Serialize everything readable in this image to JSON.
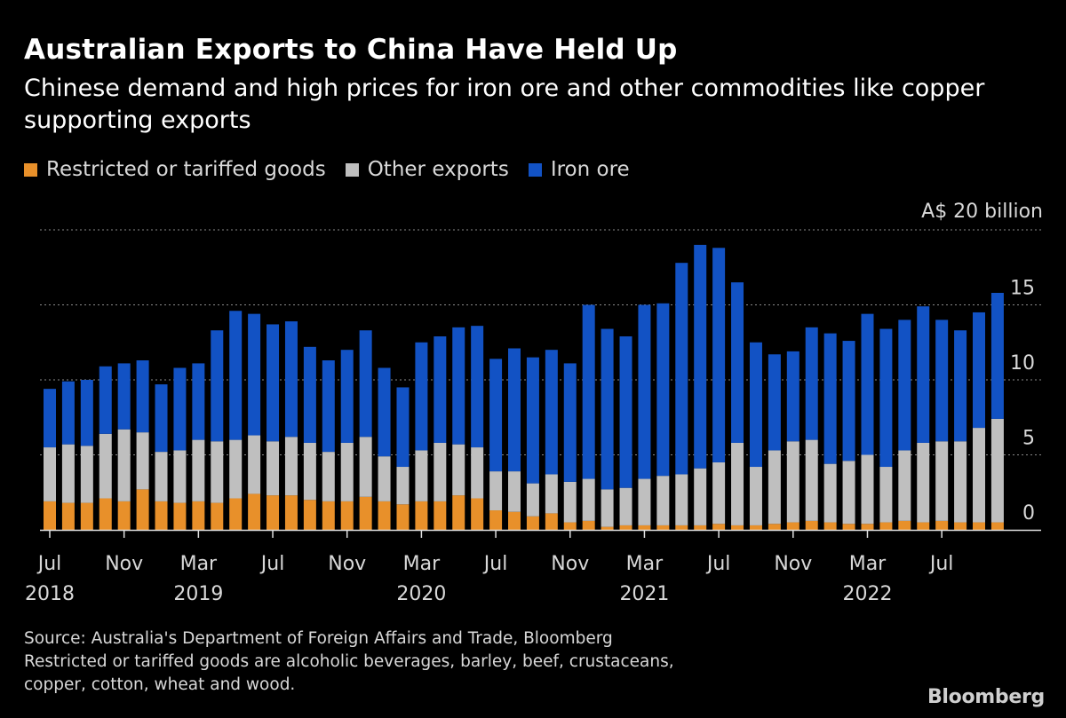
{
  "title": "Australian Exports to China Have Held Up",
  "subtitle": "Chinese demand and high prices for iron ore and other commodities like copper supporting exports",
  "legend": [
    {
      "label": "Restricted or tariffed goods",
      "color": "#e8902a"
    },
    {
      "label": "Other exports",
      "color": "#bfbfbf"
    },
    {
      "label": "Iron ore",
      "color": "#1252c4"
    }
  ],
  "footer": {
    "source": "Source: Australia's Department of Foreign Affairs and Trade, Bloomberg",
    "note_line1": "Restricted or tariffed goods are alcoholic beverages, barley, beef, crustaceans,",
    "note_line2": "copper, cotton, wheat and wood."
  },
  "logo": "Bloomberg",
  "chart_data": {
    "type": "bar",
    "stacked": true,
    "unit_label": "A$ 20 billion",
    "ylim": [
      0,
      20
    ],
    "yticks": [
      0,
      5,
      10,
      15
    ],
    "grid": true,
    "legend_position": "top-left",
    "x_tick_labels": [
      {
        "index": 0,
        "month": "Jul",
        "year": "2018"
      },
      {
        "index": 4,
        "month": "Nov",
        "year": ""
      },
      {
        "index": 8,
        "month": "Mar",
        "year": "2019"
      },
      {
        "index": 12,
        "month": "Jul",
        "year": ""
      },
      {
        "index": 16,
        "month": "Nov",
        "year": ""
      },
      {
        "index": 20,
        "month": "Mar",
        "year": "2020"
      },
      {
        "index": 24,
        "month": "Jul",
        "year": ""
      },
      {
        "index": 28,
        "month": "Nov",
        "year": ""
      },
      {
        "index": 32,
        "month": "Mar",
        "year": "2021"
      },
      {
        "index": 36,
        "month": "Jul",
        "year": ""
      },
      {
        "index": 40,
        "month": "Nov",
        "year": ""
      },
      {
        "index": 44,
        "month": "Mar",
        "year": "2022"
      },
      {
        "index": 48,
        "month": "Jul",
        "year": ""
      }
    ],
    "categories": [
      "2018-07",
      "2018-08",
      "2018-09",
      "2018-10",
      "2018-11",
      "2018-12",
      "2019-01",
      "2019-02",
      "2019-03",
      "2019-04",
      "2019-05",
      "2019-06",
      "2019-07",
      "2019-08",
      "2019-09",
      "2019-10",
      "2019-11",
      "2019-12",
      "2020-01",
      "2020-02",
      "2020-03",
      "2020-04",
      "2020-05",
      "2020-06",
      "2020-07",
      "2020-08",
      "2020-09",
      "2020-10",
      "2020-11",
      "2020-12",
      "2021-01",
      "2021-02",
      "2021-03",
      "2021-04",
      "2021-05",
      "2021-06",
      "2021-07",
      "2021-08",
      "2021-09",
      "2021-10",
      "2021-11",
      "2021-12",
      "2022-01",
      "2022-02",
      "2022-03",
      "2022-04",
      "2022-05",
      "2022-06",
      "2022-07",
      "2022-08",
      "2022-09",
      "2022-10"
    ],
    "series": [
      {
        "name": "Restricted or tariffed goods",
        "color": "#e8902a",
        "values": [
          1.9,
          1.8,
          1.8,
          2.1,
          1.9,
          2.7,
          1.9,
          1.8,
          1.9,
          1.8,
          2.1,
          2.4,
          2.3,
          2.3,
          2.0,
          1.9,
          1.9,
          2.2,
          1.9,
          1.7,
          1.9,
          1.9,
          2.3,
          2.1,
          1.3,
          1.2,
          0.9,
          1.1,
          0.5,
          0.6,
          0.2,
          0.3,
          0.3,
          0.3,
          0.3,
          0.3,
          0.4,
          0.3,
          0.3,
          0.4,
          0.5,
          0.6,
          0.5,
          0.4,
          0.4,
          0.5,
          0.6,
          0.5,
          0.6,
          0.5,
          0.5,
          0.5
        ]
      },
      {
        "name": "Other exports",
        "color": "#bfbfbf",
        "values": [
          3.6,
          3.9,
          3.8,
          4.3,
          4.8,
          3.8,
          3.3,
          3.5,
          4.1,
          4.1,
          3.9,
          3.9,
          3.6,
          3.9,
          3.8,
          3.3,
          3.9,
          4.0,
          3.0,
          2.5,
          3.4,
          3.9,
          3.4,
          3.4,
          2.6,
          2.7,
          2.2,
          2.6,
          2.7,
          2.8,
          2.5,
          2.5,
          3.1,
          3.3,
          3.4,
          3.8,
          4.1,
          5.5,
          3.9,
          4.9,
          5.4,
          5.4,
          3.9,
          4.2,
          4.6,
          3.7,
          4.7,
          5.3,
          5.3,
          5.4,
          6.3,
          6.9
        ]
      },
      {
        "name": "Iron ore",
        "color": "#1252c4",
        "values": [
          3.9,
          4.2,
          4.4,
          4.5,
          4.4,
          4.8,
          4.5,
          5.5,
          5.1,
          7.4,
          8.6,
          8.1,
          7.8,
          7.7,
          6.4,
          6.1,
          6.2,
          7.1,
          5.9,
          5.3,
          7.2,
          7.1,
          7.8,
          8.1,
          7.5,
          8.2,
          8.4,
          8.3,
          7.9,
          11.6,
          10.7,
          10.1,
          11.6,
          11.5,
          14.1,
          14.9,
          14.3,
          10.7,
          8.3,
          6.4,
          6.0,
          7.5,
          8.7,
          8.0,
          9.4,
          9.2,
          8.7,
          9.1,
          8.1,
          7.4,
          7.7,
          8.4
        ]
      }
    ]
  }
}
